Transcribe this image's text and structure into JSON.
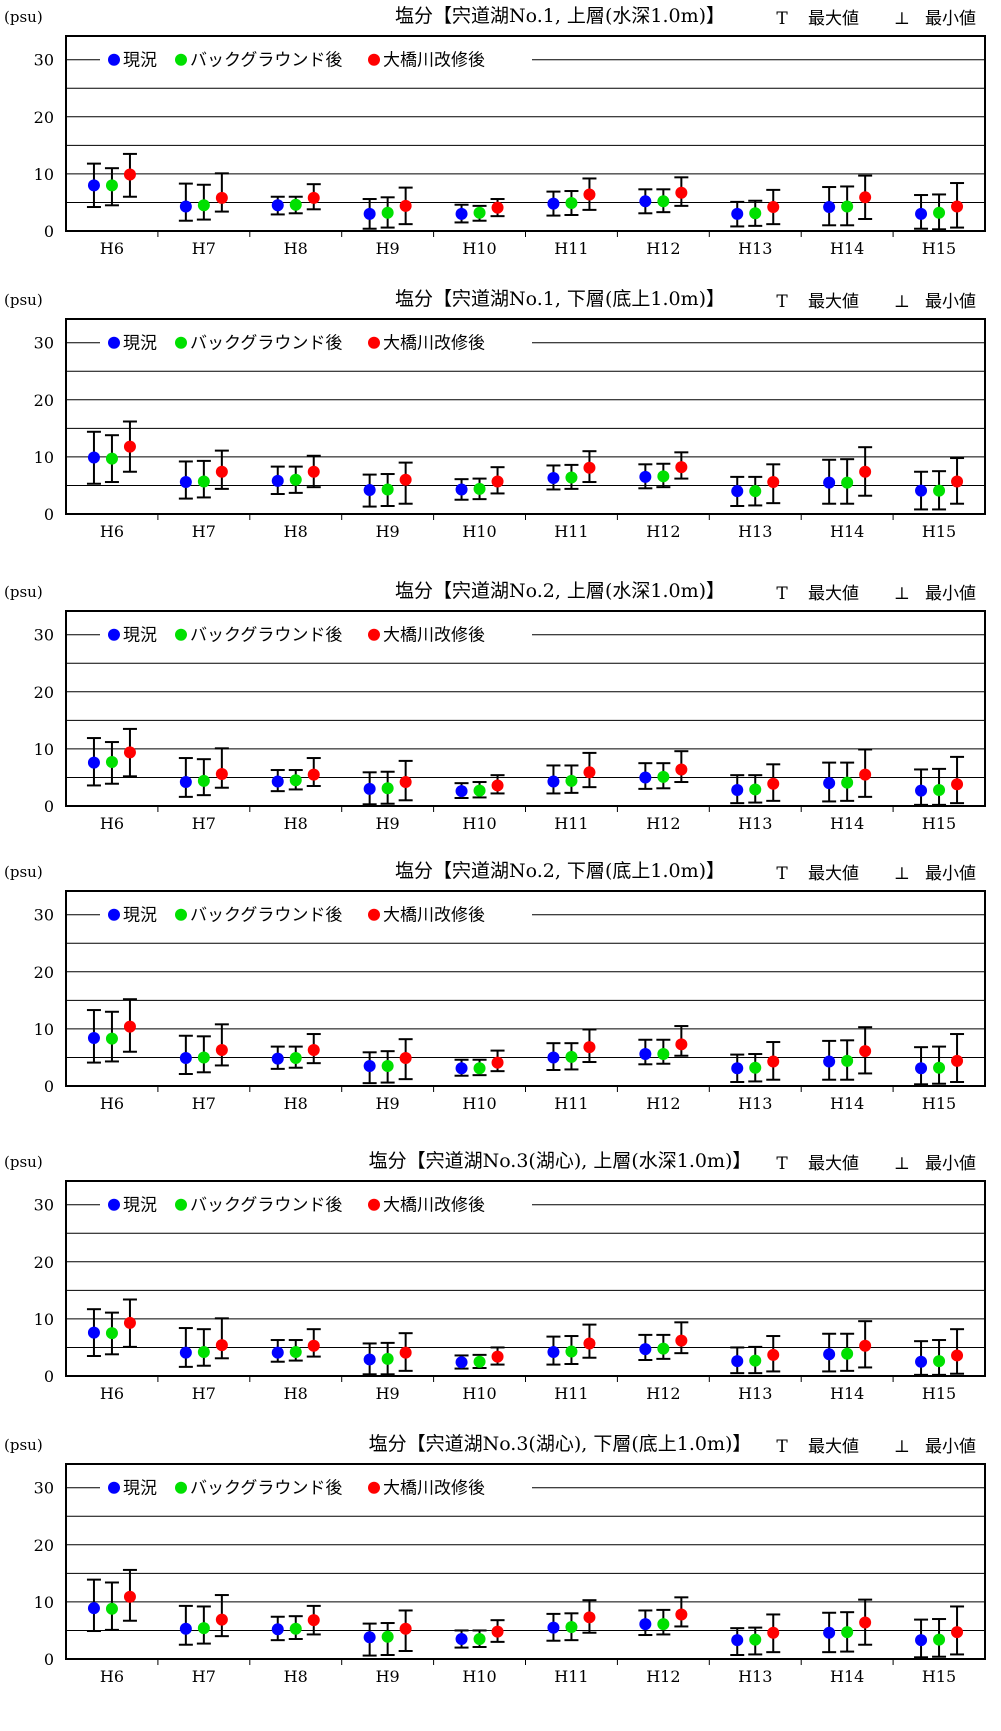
{
  "legend_labels": [
    "現況",
    "バックグラウンド後",
    "大橋川改修後"
  ],
  "extrema_legend": {
    "max_symbol": "T",
    "max_label": "最大値",
    "min_symbol": "⊥",
    "min_label": "最小値"
  },
  "series_colors": [
    "#0000ff",
    "#00e000",
    "#ff0000"
  ],
  "chart_data": [
    {
      "type": "scatter",
      "title": "塩分【宍道湖No.1, 上層(水深1.0m)】",
      "unit": "(psu)",
      "categories": [
        "H6",
        "H7",
        "H8",
        "H9",
        "H10",
        "H11",
        "H12",
        "H13",
        "H14",
        "H15"
      ],
      "ylim": [
        0,
        35
      ],
      "yticks": [
        0,
        10,
        20,
        30
      ],
      "series": [
        {
          "name": "現況",
          "mean": [
            8,
            4.3,
            4.5,
            3,
            3,
            4.8,
            5.2,
            3,
            4.2,
            3
          ],
          "max": [
            11.8,
            8.3,
            6,
            5.6,
            4.6,
            6.9,
            7.3,
            5.1,
            7.7,
            6.3
          ],
          "min": [
            4.2,
            1.8,
            2.9,
            0.4,
            1.5,
            2.7,
            3.1,
            0.8,
            1,
            0.4
          ]
        },
        {
          "name": "バックグラウンド後",
          "mean": [
            8,
            4.5,
            4.6,
            3.2,
            3.2,
            4.9,
            5.2,
            3.1,
            4.3,
            3.2
          ],
          "max": [
            11,
            8.1,
            6,
            5.9,
            4.4,
            7,
            7.3,
            5.3,
            7.8,
            6.4
          ],
          "min": [
            4.5,
            2,
            3.1,
            0.6,
            1.8,
            2.8,
            3.3,
            0.9,
            1,
            0.3
          ]
        },
        {
          "name": "大橋川改修後",
          "mean": [
            9.9,
            5.8,
            5.8,
            4.4,
            4.1,
            6.4,
            6.7,
            4.2,
            5.9,
            4.3
          ],
          "max": [
            13.5,
            10.1,
            8.2,
            7.6,
            5.6,
            9.2,
            9.4,
            7.2,
            9.7,
            8.4
          ],
          "min": [
            6,
            3.4,
            3.8,
            1.2,
            2.6,
            3.7,
            4.4,
            1.2,
            2.1,
            0.6
          ]
        }
      ]
    },
    {
      "type": "scatter",
      "title": "塩分【宍道湖No.1, 下層(底上1.0m)】",
      "unit": "(psu)",
      "categories": [
        "H6",
        "H7",
        "H8",
        "H9",
        "H10",
        "H11",
        "H12",
        "H13",
        "H14",
        "H15"
      ],
      "ylim": [
        0,
        35
      ],
      "yticks": [
        0,
        10,
        20,
        30
      ],
      "series": [
        {
          "name": "現況",
          "mean": [
            9.9,
            5.6,
            5.8,
            4.2,
            4.3,
            6.3,
            6.5,
            4,
            5.5,
            4.1
          ],
          "max": [
            14.4,
            9.2,
            8.3,
            6.9,
            6.1,
            8.5,
            8.7,
            6.5,
            9.5,
            7.4
          ],
          "min": [
            5.3,
            2.7,
            3.5,
            1.3,
            2.5,
            4.3,
            4.5,
            1.4,
            1.8,
            0.8
          ]
        },
        {
          "name": "バックグラウンド後",
          "mean": [
            9.7,
            5.7,
            6,
            4.3,
            4.4,
            6.4,
            6.6,
            4,
            5.5,
            4.1
          ],
          "max": [
            13.8,
            9.3,
            8.3,
            7,
            6.2,
            8.6,
            8.8,
            6.5,
            9.6,
            7.5
          ],
          "min": [
            5.6,
            2.9,
            3.7,
            1.4,
            2.6,
            4.4,
            4.7,
            1.5,
            1.8,
            0.8
          ]
        },
        {
          "name": "大橋川改修後",
          "mean": [
            11.8,
            7.4,
            7.4,
            6,
            5.7,
            8.1,
            8.2,
            5.6,
            7.4,
            5.7
          ],
          "max": [
            16.2,
            11.1,
            10.2,
            9,
            8.2,
            11,
            10.8,
            8.7,
            11.7,
            9.8
          ],
          "min": [
            7.4,
            4.4,
            4.7,
            1.8,
            3.6,
            5.6,
            6.2,
            1.9,
            3.2,
            1.8
          ]
        }
      ]
    },
    {
      "type": "scatter",
      "title": "塩分【宍道湖No.2, 上層(水深1.0m)】",
      "unit": "(psu)",
      "categories": [
        "H6",
        "H7",
        "H8",
        "H9",
        "H10",
        "H11",
        "H12",
        "H13",
        "H14",
        "H15"
      ],
      "ylim": [
        0,
        35
      ],
      "yticks": [
        0,
        10,
        20,
        30
      ],
      "series": [
        {
          "name": "現況",
          "mean": [
            7.6,
            4.2,
            4.3,
            3,
            2.6,
            4.3,
            5,
            2.8,
            4,
            2.7
          ],
          "max": [
            11.9,
            8.4,
            6.3,
            5.9,
            4,
            7.1,
            7.5,
            5.4,
            7.6,
            6.4
          ],
          "min": [
            3.6,
            1.6,
            2.6,
            0.3,
            1.4,
            2.2,
            3,
            0.5,
            0.8,
            0.2
          ]
        },
        {
          "name": "バックグラウンド後",
          "mean": [
            7.7,
            4.4,
            4.5,
            3.1,
            2.7,
            4.4,
            5.1,
            2.9,
            4.1,
            2.8
          ],
          "max": [
            11.2,
            8.2,
            6.3,
            6,
            4.2,
            7.1,
            7.5,
            5.4,
            7.6,
            6.5
          ],
          "min": [
            3.9,
            1.9,
            2.9,
            0.4,
            1.5,
            2.3,
            3.1,
            0.6,
            0.9,
            0.2
          ]
        },
        {
          "name": "大橋川改修後",
          "mean": [
            9.4,
            5.6,
            5.5,
            4.2,
            3.6,
            5.9,
            6.4,
            3.9,
            5.5,
            3.8
          ],
          "max": [
            13.5,
            10.1,
            8.4,
            7.9,
            5.4,
            9.3,
            9.6,
            7.3,
            9.9,
            8.6
          ],
          "min": [
            5.2,
            3.2,
            3.5,
            1,
            2.2,
            3.3,
            4.2,
            0.9,
            1.6,
            0.5
          ]
        }
      ]
    },
    {
      "type": "scatter",
      "title": "塩分【宍道湖No.2, 下層(底上1.0m)】",
      "unit": "(psu)",
      "categories": [
        "H6",
        "H7",
        "H8",
        "H9",
        "H10",
        "H11",
        "H12",
        "H13",
        "H14",
        "H15"
      ],
      "ylim": [
        0,
        35
      ],
      "yticks": [
        0,
        10,
        20,
        30
      ],
      "series": [
        {
          "name": "現況",
          "mean": [
            8.4,
            4.9,
            4.8,
            3.5,
            3.1,
            5,
            5.6,
            3.1,
            4.3,
            3.1
          ],
          "max": [
            13.3,
            8.8,
            6.9,
            5.9,
            4.6,
            7.5,
            8.1,
            5.5,
            7.9,
            6.8
          ],
          "min": [
            4.1,
            2.1,
            3,
            0.5,
            1.8,
            2.8,
            3.8,
            0.7,
            1.1,
            0.3
          ]
        },
        {
          "name": "バックグラウンド後",
          "mean": [
            8.3,
            5,
            4.9,
            3.5,
            3.1,
            5.1,
            5.6,
            3.2,
            4.4,
            3.2
          ],
          "max": [
            13,
            8.7,
            6.9,
            6.1,
            4.6,
            7.5,
            8.1,
            5.6,
            8,
            6.9
          ],
          "min": [
            4.3,
            2.4,
            3.2,
            0.6,
            1.9,
            2.9,
            3.9,
            0.8,
            1.1,
            0.4
          ]
        },
        {
          "name": "大橋川改修後",
          "mean": [
            10.4,
            6.3,
            6.3,
            4.9,
            4.1,
            6.8,
            7.3,
            4.3,
            6.1,
            4.4
          ],
          "max": [
            15.2,
            10.8,
            9.1,
            8.2,
            6.2,
            9.9,
            10.5,
            7.7,
            10.3,
            9.1
          ],
          "min": [
            6,
            3.6,
            4,
            1.2,
            2.6,
            4.2,
            5.3,
            1.1,
            2.2,
            0.7
          ]
        }
      ]
    },
    {
      "type": "scatter",
      "title": "塩分【宍道湖No.3(湖心), 上層(水深1.0m)】",
      "unit": "(psu)",
      "categories": [
        "H6",
        "H7",
        "H8",
        "H9",
        "H10",
        "H11",
        "H12",
        "H13",
        "H14",
        "H15"
      ],
      "ylim": [
        0,
        35
      ],
      "yticks": [
        0,
        10,
        20,
        30
      ],
      "series": [
        {
          "name": "現況",
          "mean": [
            7.6,
            4.1,
            4.1,
            2.9,
            2.4,
            4.2,
            4.7,
            2.6,
            3.8,
            2.5
          ],
          "max": [
            11.7,
            8.4,
            6.3,
            5.7,
            3.6,
            6.9,
            7.2,
            5,
            7.4,
            6.1
          ],
          "min": [
            3.5,
            1.6,
            2.5,
            0.3,
            1.3,
            2,
            2.8,
            0.5,
            0.8,
            0.2
          ]
        },
        {
          "name": "バックグラウンド後",
          "mean": [
            7.5,
            4.2,
            4.2,
            3,
            2.5,
            4.3,
            4.8,
            2.7,
            3.9,
            2.6
          ],
          "max": [
            11.1,
            8.2,
            6.3,
            5.8,
            3.7,
            7,
            7.2,
            5.1,
            7.4,
            6.3
          ],
          "min": [
            3.8,
            1.8,
            2.7,
            0.3,
            1.4,
            2.1,
            3,
            0.5,
            0.9,
            0.2
          ]
        },
        {
          "name": "大橋川改修後",
          "mean": [
            9.3,
            5.4,
            5.3,
            4.1,
            3.4,
            5.7,
            6.2,
            3.7,
            5.3,
            3.6
          ],
          "max": [
            13.4,
            10.1,
            8.2,
            7.5,
            5,
            9,
            9.4,
            7,
            9.6,
            8.2
          ],
          "min": [
            5.1,
            3.1,
            3.4,
            0.9,
            2,
            3.2,
            4,
            0.8,
            1.5,
            0.4
          ]
        }
      ]
    },
    {
      "type": "scatter",
      "title": "塩分【宍道湖No.3(湖心), 下層(底上1.0m)】",
      "unit": "(psu)",
      "categories": [
        "H6",
        "H7",
        "H8",
        "H9",
        "H10",
        "H11",
        "H12",
        "H13",
        "H14",
        "H15"
      ],
      "ylim": [
        0,
        35
      ],
      "yticks": [
        0,
        10,
        20,
        30
      ],
      "series": [
        {
          "name": "現況",
          "mean": [
            8.9,
            5.3,
            5.2,
            3.8,
            3.5,
            5.5,
            6.1,
            3.3,
            4.6,
            3.3
          ],
          "max": [
            13.9,
            9.3,
            7.4,
            6.2,
            5,
            7.9,
            8.5,
            5.4,
            8.1,
            6.9
          ],
          "min": [
            4.9,
            2.5,
            3.3,
            0.6,
            2,
            3.2,
            4.2,
            0.7,
            1.2,
            0.3
          ]
        },
        {
          "name": "バックグラウンド後",
          "mean": [
            8.8,
            5.4,
            5.3,
            3.9,
            3.5,
            5.6,
            6.1,
            3.4,
            4.7,
            3.4
          ],
          "max": [
            13.4,
            9.2,
            7.5,
            6.3,
            5,
            8,
            8.6,
            5.5,
            8.2,
            7
          ],
          "min": [
            5.1,
            2.7,
            3.5,
            0.7,
            2.1,
            3.3,
            4.3,
            0.8,
            1.3,
            0.4
          ]
        },
        {
          "name": "大橋川改修後",
          "mean": [
            10.9,
            6.9,
            6.8,
            5.3,
            4.8,
            7.3,
            7.8,
            4.6,
            6.4,
            4.7
          ],
          "max": [
            15.6,
            11.2,
            9.3,
            8.5,
            6.8,
            10.3,
            10.8,
            7.8,
            10.4,
            9.2
          ],
          "min": [
            6.7,
            4,
            4.3,
            1.4,
            3,
            4.6,
            5.7,
            1.2,
            2.5,
            0.8
          ]
        }
      ]
    }
  ]
}
